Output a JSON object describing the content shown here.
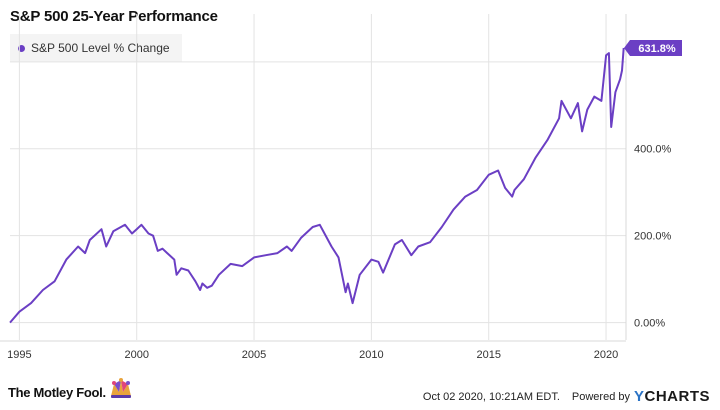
{
  "title": "S&P 500 25-Year Performance",
  "legend": {
    "label": "S&P 500 Level % Change",
    "color": "#6b3fc4"
  },
  "footer": {
    "brand": "The Motley Fool.",
    "timestamp": "Oct 02 2020, 10:21AM EDT.",
    "powered_by": "Powered by",
    "provider": "YCHARTS"
  },
  "colors": {
    "line": "#6b3fc4",
    "grid": "#e3e3e3",
    "label_bg": "#6b3fc4"
  },
  "chart_data": {
    "type": "line",
    "title": "S&P 500 25-Year Performance",
    "series": [
      {
        "name": "S&P 500 Level % Change",
        "x": [
          1994.6,
          1995.0,
          1995.5,
          1996.0,
          1996.5,
          1997.0,
          1997.5,
          1997.8,
          1998.0,
          1998.5,
          1998.7,
          1999.0,
          1999.5,
          1999.8,
          2000.0,
          2000.2,
          2000.5,
          2000.7,
          2000.9,
          2001.1,
          2001.3,
          2001.6,
          2001.7,
          2001.9,
          2002.2,
          2002.5,
          2002.7,
          2002.8,
          2003.0,
          2003.2,
          2003.5,
          2004.0,
          2004.5,
          2005.0,
          2005.5,
          2006.0,
          2006.4,
          2006.6,
          2007.0,
          2007.5,
          2007.8,
          2008.0,
          2008.3,
          2008.6,
          2008.9,
          2009.0,
          2009.2,
          2009.5,
          2010.0,
          2010.3,
          2010.5,
          2011.0,
          2011.3,
          2011.7,
          2012.0,
          2012.5,
          2013.0,
          2013.5,
          2014.0,
          2014.5,
          2015.0,
          2015.4,
          2015.7,
          2016.0,
          2016.1,
          2016.5,
          2017.0,
          2017.5,
          2018.0,
          2018.1,
          2018.5,
          2018.8,
          2018.98,
          2019.2,
          2019.5,
          2019.8,
          2020.0,
          2020.12,
          2020.22,
          2020.4,
          2020.6,
          2020.68,
          2020.75
        ],
        "values": [
          0,
          25,
          45,
          75,
          95,
          145,
          175,
          160,
          190,
          215,
          175,
          210,
          225,
          205,
          215,
          225,
          205,
          200,
          165,
          170,
          160,
          145,
          110,
          125,
          120,
          95,
          75,
          90,
          80,
          85,
          110,
          135,
          130,
          150,
          155,
          160,
          175,
          165,
          195,
          220,
          225,
          205,
          175,
          150,
          70,
          90,
          45,
          110,
          145,
          140,
          115,
          180,
          190,
          155,
          175,
          185,
          220,
          260,
          290,
          305,
          340,
          350,
          310,
          290,
          305,
          330,
          380,
          420,
          470,
          510,
          470,
          505,
          440,
          490,
          520,
          510,
          615,
          620,
          450,
          530,
          560,
          580,
          631.8
        ]
      }
    ],
    "xlim": [
      1994.6,
      2020.85
    ],
    "ylim": [
      -40,
      710
    ],
    "x_ticks": [
      1995,
      2000,
      2005,
      2010,
      2015,
      2020
    ],
    "x_tick_labels": [
      "1995",
      "2000",
      "2005",
      "2010",
      "2015",
      "2020"
    ],
    "y_ticks": [
      0,
      200,
      400,
      600
    ],
    "y_tick_labels": [
      "0.00%",
      "200.0%",
      "400.0%",
      ""
    ],
    "end_label": "631.8%",
    "grid": true,
    "legend_position": "top-left"
  }
}
